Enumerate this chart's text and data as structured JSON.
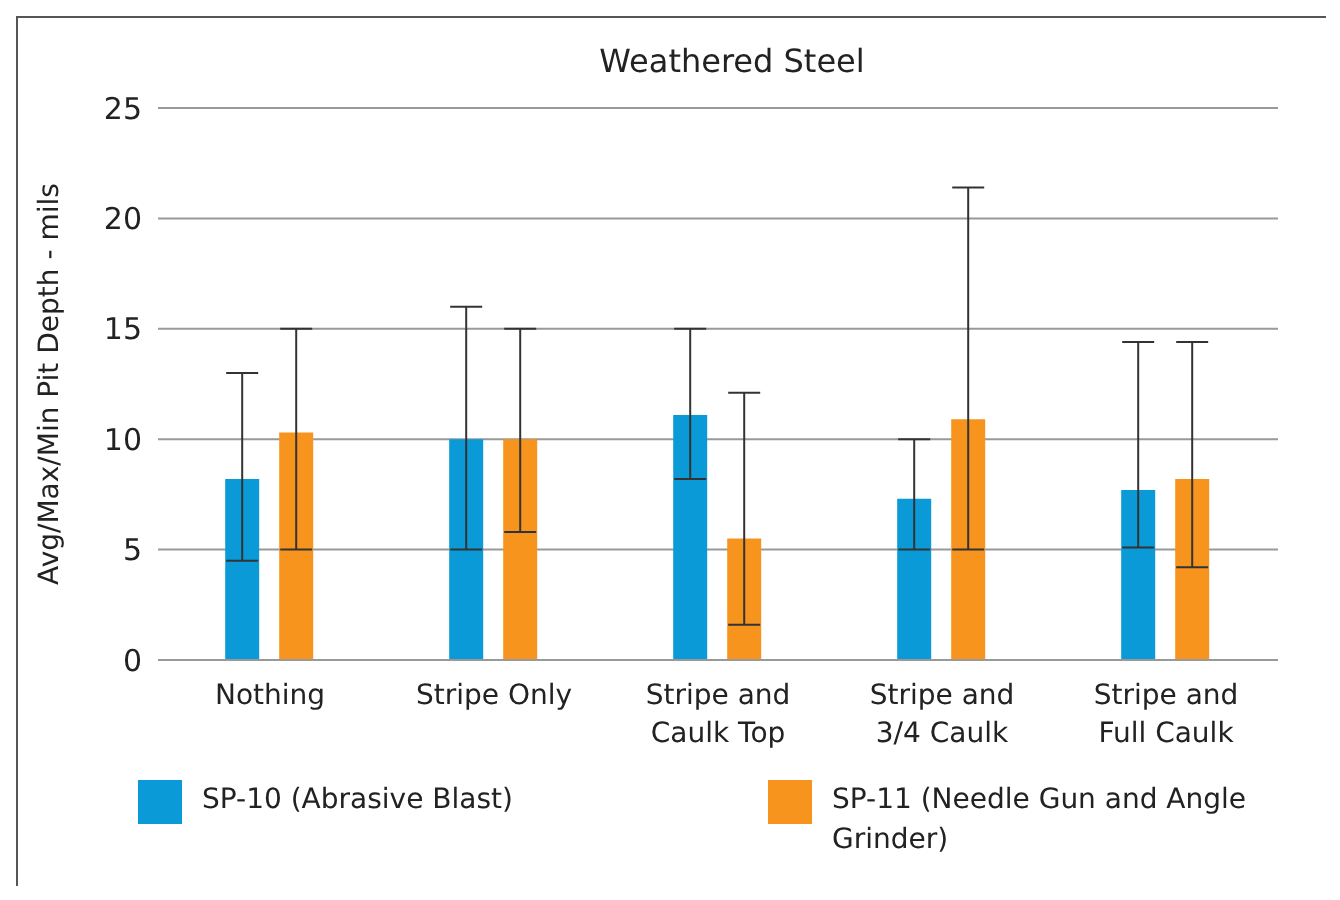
{
  "chart_data": {
    "type": "bar",
    "title": "Weathered Steel",
    "ylabel": "Avg/Max/Min Pit Depth - mils",
    "categories": [
      "Nothing",
      "Stripe Only",
      "Stripe and Caulk Top",
      "Stripe and 3/4 Caulk",
      "Stripe and Full Caulk"
    ],
    "series": [
      {
        "name": "SP-10 (Abrasive Blast)",
        "color": "#0a9ad8",
        "values": [
          8.2,
          10,
          11.1,
          7.3,
          7.7
        ],
        "errors": [
          [
            4.5,
            13
          ],
          [
            5,
            16
          ],
          [
            8.2,
            15
          ],
          [
            5,
            10
          ],
          [
            5.1,
            14.4
          ]
        ]
      },
      {
        "name": "SP-11 (Needle Gun and Angle Grinder)",
        "color": "#f7941d",
        "values": [
          10.3,
          10,
          5.5,
          10.9,
          8.2
        ],
        "errors": [
          [
            5,
            15
          ],
          [
            5.8,
            15
          ],
          [
            1.6,
            12.1
          ],
          [
            5,
            21.4
          ],
          [
            4.2,
            14.4
          ]
        ]
      }
    ],
    "ylim": [
      0,
      25
    ],
    "yticks": [
      0,
      5,
      10,
      15,
      20,
      25
    ],
    "grid": "y",
    "legend": "bottom"
  }
}
